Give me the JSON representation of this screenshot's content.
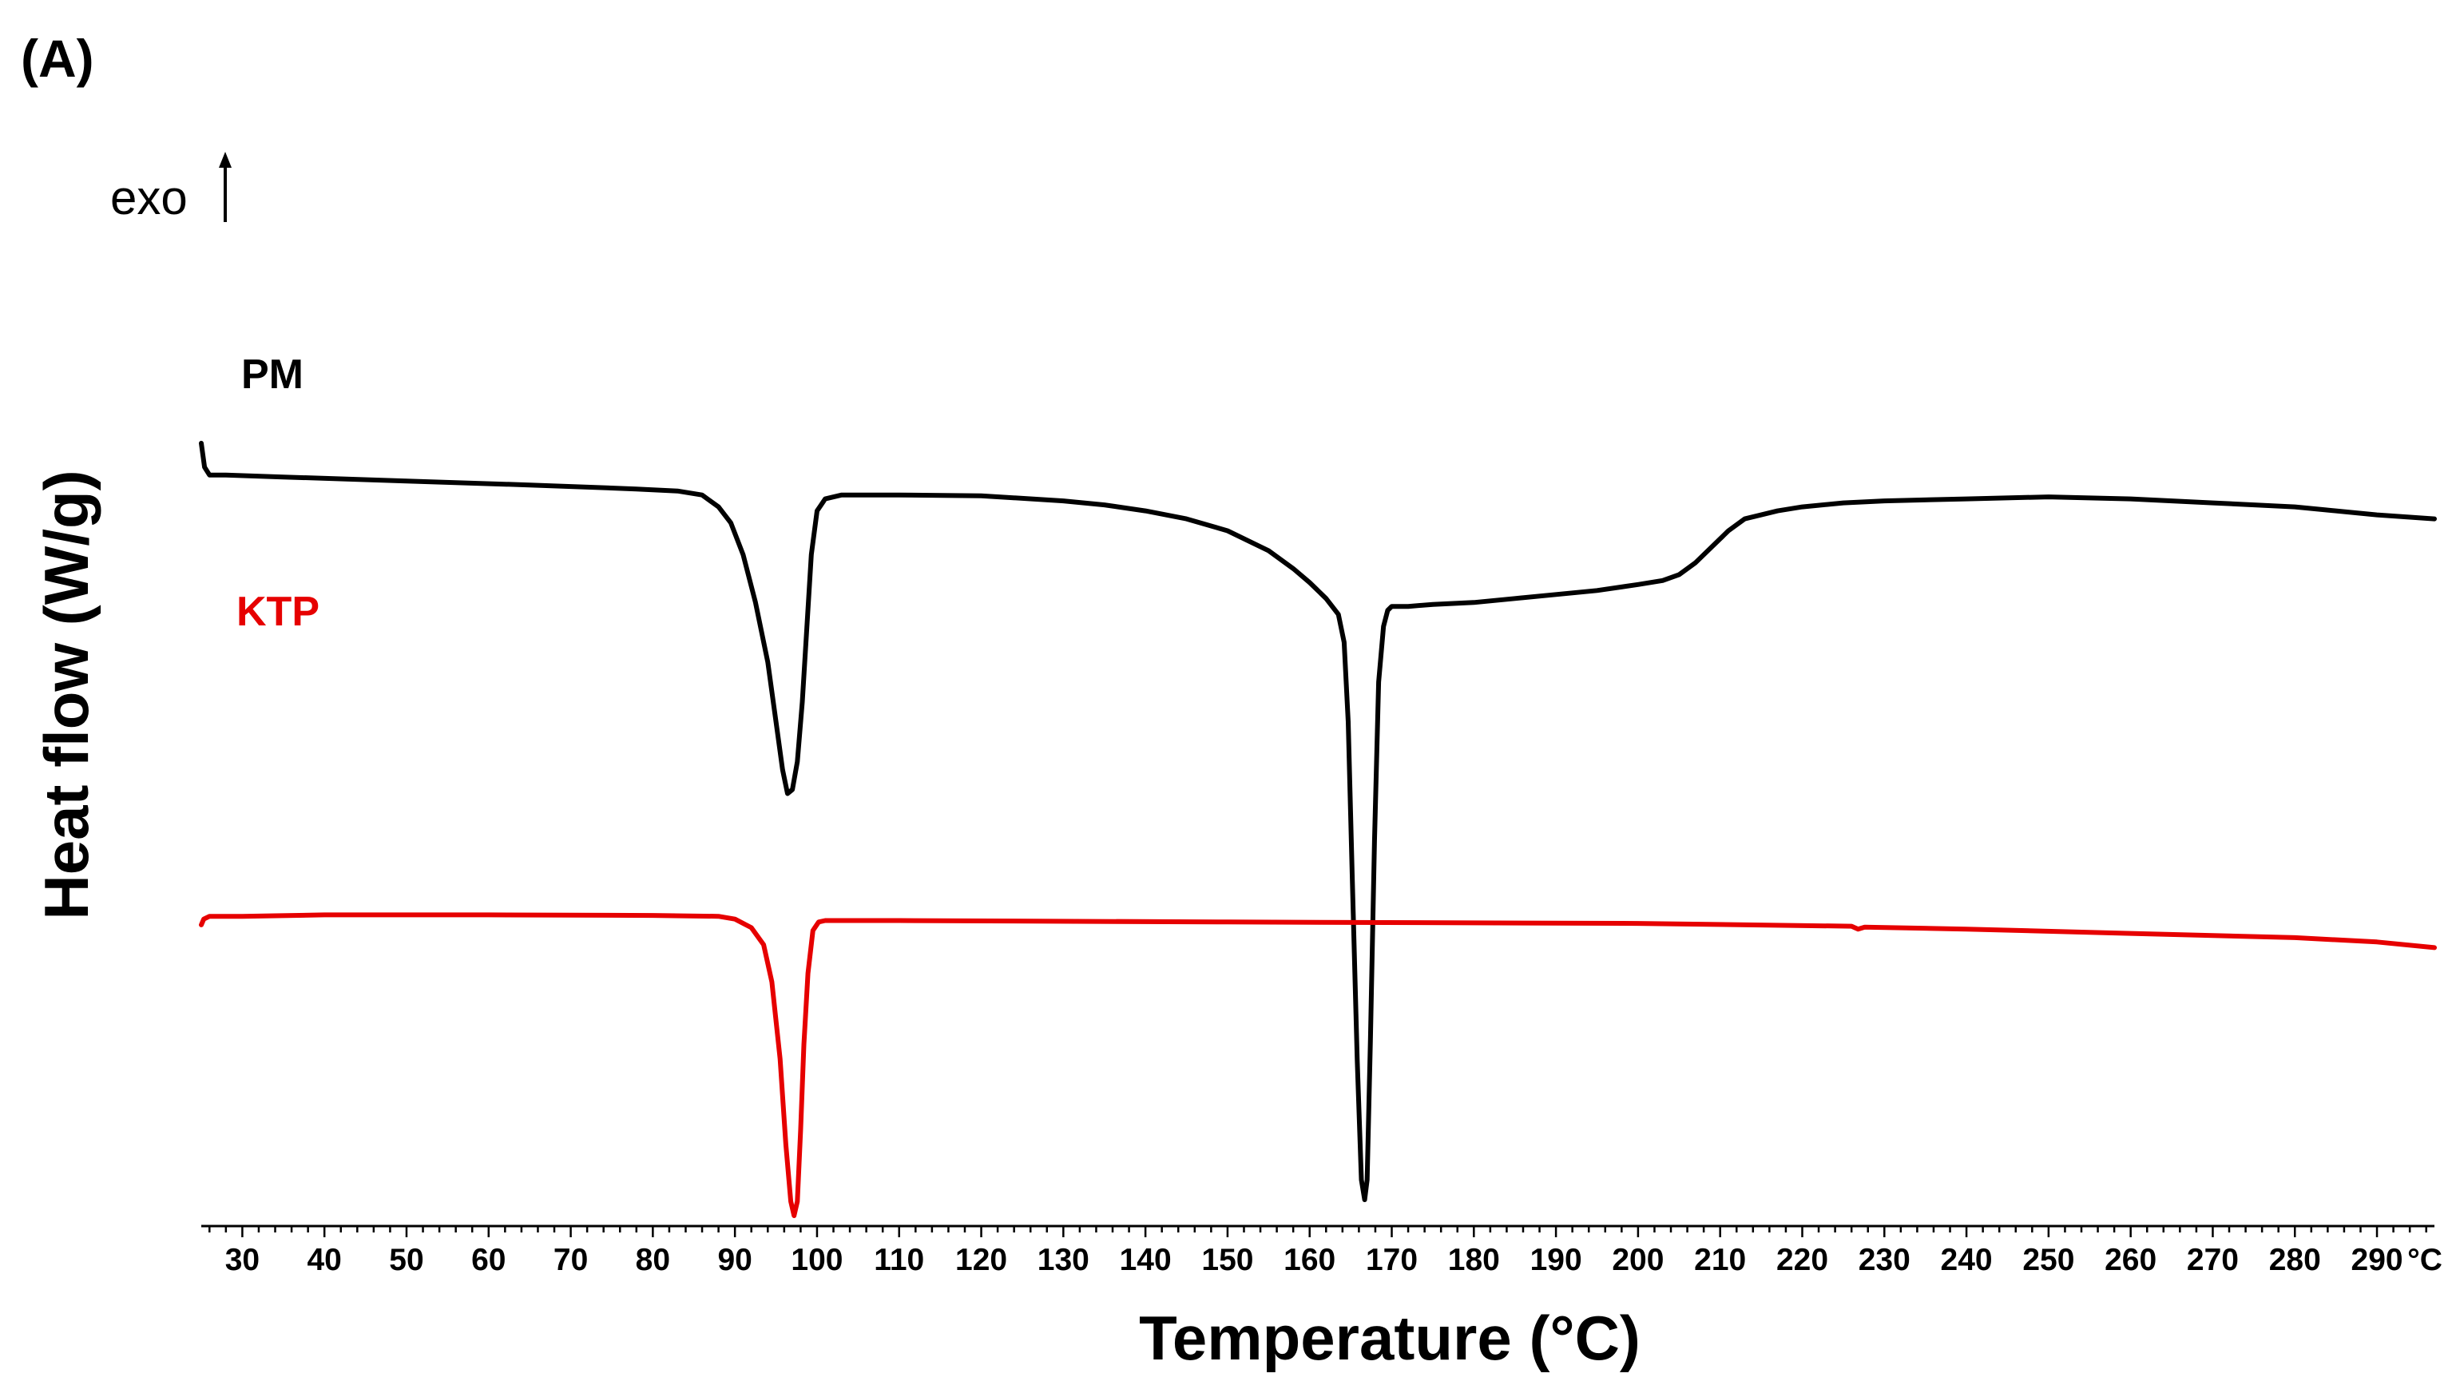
{
  "panel_label": "(A)",
  "exo_label": "exo",
  "chart_data": {
    "type": "line",
    "title": "",
    "xlabel": "Temperature (°C)",
    "ylabel": "Heat flow (W/g)",
    "xlim": [
      25,
      297
    ],
    "ylim": [
      -1.0,
      1.0
    ],
    "x_ticks": [
      30,
      40,
      50,
      60,
      70,
      80,
      90,
      100,
      110,
      120,
      130,
      140,
      150,
      160,
      170,
      180,
      190,
      200,
      210,
      220,
      230,
      240,
      250,
      260,
      270,
      280,
      290
    ],
    "x_tick_labels": [
      "30",
      "40",
      "50",
      "60",
      "70",
      "80",
      "90",
      "100",
      "110",
      "120",
      "130",
      "140",
      "150",
      "160",
      "170",
      "180",
      "190",
      "200",
      "210",
      "220",
      "230",
      "240",
      "250",
      "260",
      "270",
      "280",
      "290"
    ],
    "x_unit_label": "°C",
    "y_ticks_shown": false,
    "series": [
      {
        "name": "PM",
        "color": "#000000",
        "x": [
          25.0,
          25.4,
          26.0,
          28,
          35,
          50,
          65,
          78,
          83,
          86,
          88,
          89.5,
          91,
          92.5,
          94,
          95,
          95.8,
          96.4,
          97.0,
          97.6,
          98.2,
          98.8,
          99.3,
          100,
          101,
          103,
          110,
          120,
          130,
          135,
          140,
          145,
          150,
          155,
          158,
          160,
          162,
          163.5,
          164.2,
          164.7,
          165.2,
          165.8,
          166.3,
          166.7,
          167.0,
          167.4,
          167.9,
          168.4,
          169.0,
          169.5,
          170,
          171,
          172,
          175,
          180,
          185,
          190,
          195,
          200,
          203,
          205,
          207,
          209,
          211,
          213,
          215,
          217,
          220,
          225,
          230,
          240,
          250,
          260,
          270,
          280,
          290,
          297
        ],
        "y": [
          0.9,
          0.84,
          0.82,
          0.82,
          0.815,
          0.805,
          0.795,
          0.785,
          0.78,
          0.77,
          0.74,
          0.7,
          0.62,
          0.5,
          0.35,
          0.2,
          0.08,
          0.02,
          0.03,
          0.1,
          0.25,
          0.45,
          0.62,
          0.73,
          0.76,
          0.77,
          0.77,
          0.768,
          0.755,
          0.745,
          0.73,
          0.71,
          0.68,
          0.63,
          0.585,
          0.55,
          0.51,
          0.47,
          0.4,
          0.2,
          -0.2,
          -0.65,
          -0.95,
          -1.0,
          -0.95,
          -0.6,
          -0.1,
          0.3,
          0.44,
          0.48,
          0.49,
          0.49,
          0.49,
          0.495,
          0.5,
          0.51,
          0.52,
          0.53,
          0.545,
          0.555,
          0.57,
          0.6,
          0.64,
          0.68,
          0.71,
          0.72,
          0.73,
          0.74,
          0.75,
          0.755,
          0.76,
          0.765,
          0.76,
          0.75,
          0.74,
          0.72,
          0.71
        ]
      },
      {
        "name": "KTP",
        "color": "#e60000",
        "x": [
          25.0,
          25.3,
          26.0,
          30,
          40,
          60,
          80,
          88,
          90,
          92,
          93.5,
          94.5,
          95.5,
          96.2,
          96.8,
          97.2,
          97.6,
          98.0,
          98.4,
          98.9,
          99.5,
          100.2,
          101,
          103,
          110,
          150,
          200,
          226,
          226.8,
          227.6,
          240,
          260,
          280,
          290,
          297
        ],
        "y": [
          0.02,
          0.04,
          0.05,
          0.05,
          0.055,
          0.055,
          0.053,
          0.05,
          0.04,
          0.01,
          -0.05,
          -0.18,
          -0.45,
          -0.75,
          -0.95,
          -1.0,
          -0.95,
          -0.7,
          -0.4,
          -0.15,
          0.0,
          0.03,
          0.035,
          0.035,
          0.035,
          0.03,
          0.025,
          0.015,
          0.005,
          0.012,
          0.005,
          -0.01,
          -0.025,
          -0.04,
          -0.06
        ]
      }
    ]
  }
}
